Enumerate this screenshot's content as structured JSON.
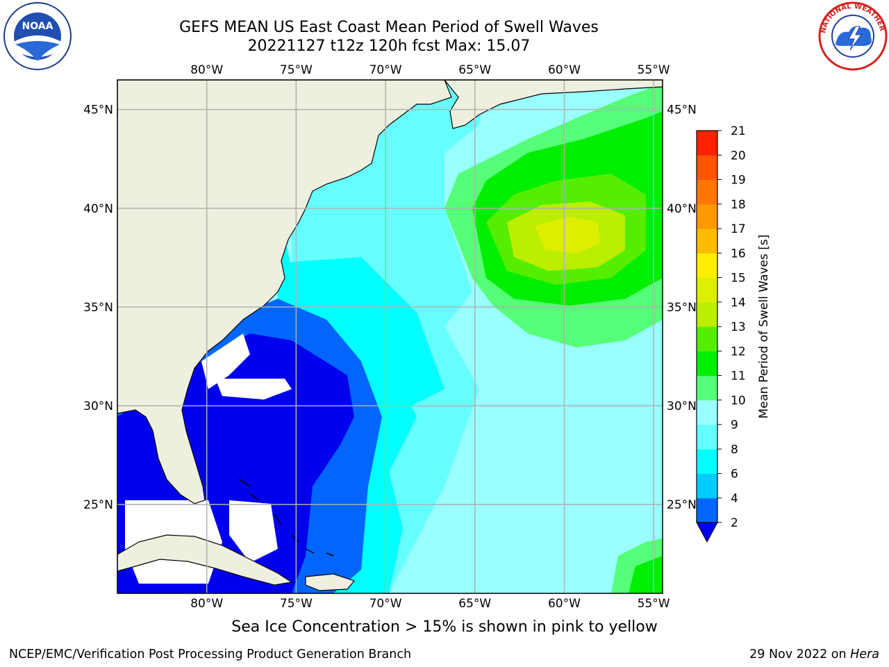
{
  "title": {
    "line1": "GEFS MEAN US East Coast Mean Period of Swell Waves",
    "line2": "20221127 t12z 120h fcst   Max: 15.07"
  },
  "map": {
    "lon_labels": [
      "80°W",
      "75°W",
      "70°W",
      "65°W",
      "60°W",
      "55°W"
    ],
    "lat_labels": [
      "45°N",
      "40°N",
      "35°N",
      "30°N",
      "25°N"
    ],
    "lon_range": [
      -85,
      -54.5
    ],
    "lat_range": [
      20.5,
      46.5
    ],
    "land_color": "#efefdf",
    "grid": true
  },
  "colorbar": {
    "label": "Mean Period of Swell Waves [s]",
    "ticks": [
      "2",
      "4",
      "6",
      "8",
      "9",
      "10",
      "11",
      "12",
      "13",
      "14",
      "15",
      "16",
      "17",
      "18",
      "19",
      "20",
      "21"
    ],
    "levels": [
      {
        "from": 2,
        "to": 4,
        "color": "#0066ff"
      },
      {
        "from": 4,
        "to": 6,
        "color": "#00ccff"
      },
      {
        "from": 6,
        "to": 8,
        "color": "#00ffff"
      },
      {
        "from": 8,
        "to": 9,
        "color": "#66ffff"
      },
      {
        "from": 9,
        "to": 10,
        "color": "#99ffff"
      },
      {
        "from": 10,
        "to": 11,
        "color": "#55ff77"
      },
      {
        "from": 11,
        "to": 12,
        "color": "#00ee00"
      },
      {
        "from": 12,
        "to": 13,
        "color": "#55ee00"
      },
      {
        "from": 13,
        "to": 14,
        "color": "#bbee00"
      },
      {
        "from": 14,
        "to": 15,
        "color": "#ddee00"
      },
      {
        "from": 15,
        "to": 16,
        "color": "#ffee00"
      },
      {
        "from": 16,
        "to": 17,
        "color": "#ffbb00"
      },
      {
        "from": 17,
        "to": 18,
        "color": "#ff9900"
      },
      {
        "from": 18,
        "to": 19,
        "color": "#ff7700"
      },
      {
        "from": 19,
        "to": 20,
        "color": "#ff5500"
      },
      {
        "from": 20,
        "to": 21,
        "color": "#ff2200"
      },
      {
        "from": 21,
        "to": 22,
        "color": "#ff0000"
      }
    ],
    "under_color": "#0000ee"
  },
  "caption": "Sea Ice Concentration > 15% is shown in pink to yellow",
  "footer": {
    "left": "NCEP/EMC/Verification Post Processing Product Generation Branch",
    "right_prefix": "29 Nov 2022 on ",
    "right_host": "Hera"
  },
  "logos": {
    "noaa_text": "NOAA",
    "nws_text": "NATIONAL WEATHER SERVICE"
  }
}
